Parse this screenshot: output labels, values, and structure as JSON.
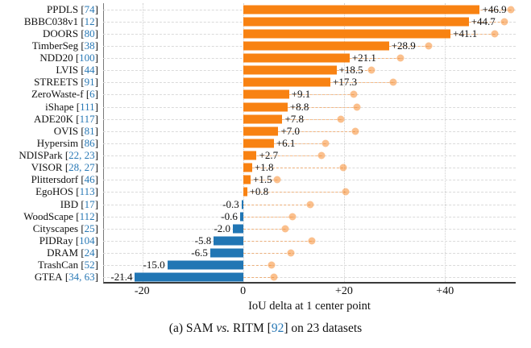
{
  "chart_data": {
    "type": "bar",
    "orientation": "horizontal",
    "xlabel": "IoU delta at 1 center point",
    "xlim": [
      -27.7,
      54.0
    ],
    "grid": {
      "vertical": "dotted at x ticks",
      "horizontal": "dashed per row"
    },
    "x_ticks": [
      {
        "value": -20,
        "label": "-20"
      },
      {
        "value": 0,
        "label": "0"
      },
      {
        "value": 20,
        "label": "+20"
      },
      {
        "value": 40,
        "label": "+40"
      }
    ],
    "colors": {
      "bar_positive": "#f88212",
      "bar_negative": "#2176b4",
      "dot": "rgba(247,141,47,0.55)",
      "connector": "rgba(247,141,47,0.55)",
      "citation": "#2878b5"
    },
    "series": [
      {
        "name": "bars",
        "description": "IoU delta at 1 center point (labeled values)"
      },
      {
        "name": "dots",
        "description": "unlabeled light-orange dots; values estimated from pixels"
      }
    ],
    "rows": [
      {
        "dataset": "PPDLS",
        "cite": "74",
        "delta": 46.9,
        "label": "+46.9",
        "dot": 53.1
      },
      {
        "dataset": "BBBC038v1",
        "cite": "12",
        "delta": 44.7,
        "label": "+44.7",
        "dot": 51.8
      },
      {
        "dataset": "DOORS",
        "cite": "80",
        "delta": 41.1,
        "label": "+41.1",
        "dot": 49.9
      },
      {
        "dataset": "TimberSeg",
        "cite": "38",
        "delta": 28.9,
        "label": "+28.9",
        "dot": 36.8
      },
      {
        "dataset": "NDD20",
        "cite": "100",
        "delta": 21.1,
        "label": "+21.1",
        "dot": 31.2
      },
      {
        "dataset": "LVIS",
        "cite": "44",
        "delta": 18.5,
        "label": "+18.5",
        "dot": 25.5
      },
      {
        "dataset": "STREETS",
        "cite": "91",
        "delta": 17.3,
        "label": "+17.3",
        "dot": 29.7
      },
      {
        "dataset": "ZeroWaste-f",
        "cite": "6",
        "delta": 9.1,
        "label": "+9.1",
        "dot": 22.0
      },
      {
        "dataset": "iShape",
        "cite": "111",
        "delta": 8.8,
        "label": "+8.8",
        "dot": 22.5
      },
      {
        "dataset": "ADE20K",
        "cite": "117",
        "delta": 7.8,
        "label": "+7.8",
        "dot": 19.3
      },
      {
        "dataset": "OVIS",
        "cite": "81",
        "delta": 7.0,
        "label": "+7.0",
        "dot": 22.2
      },
      {
        "dataset": "Hypersim",
        "cite": "86",
        "delta": 6.1,
        "label": "+6.1",
        "dot": 16.4
      },
      {
        "dataset": "NDISPark",
        "cite": "22, 23",
        "delta": 2.7,
        "label": "+2.7",
        "dot": 15.6
      },
      {
        "dataset": "VISOR",
        "cite": "28, 27",
        "delta": 1.8,
        "label": "+1.8",
        "dot": 19.9
      },
      {
        "dataset": "Plittersdorf",
        "cite": "46",
        "delta": 1.5,
        "label": "+1.5",
        "dot": 6.8
      },
      {
        "dataset": "EgoHOS",
        "cite": "113",
        "delta": 0.8,
        "label": "+0.8",
        "dot": 20.4
      },
      {
        "dataset": "IBD",
        "cite": "17",
        "delta": -0.3,
        "label": "-0.3",
        "dot": 13.3
      },
      {
        "dataset": "WoodScape",
        "cite": "112",
        "delta": -0.6,
        "label": "-0.6",
        "dot": 9.8
      },
      {
        "dataset": "Cityscapes",
        "cite": "25",
        "delta": -2.0,
        "label": "-2.0",
        "dot": 8.4
      },
      {
        "dataset": "PIDRay",
        "cite": "104",
        "delta": -5.8,
        "label": "-5.8",
        "dot": 13.7
      },
      {
        "dataset": "DRAM",
        "cite": "24",
        "delta": -6.5,
        "label": "-6.5",
        "dot": 9.5
      },
      {
        "dataset": "TrashCan",
        "cite": "52",
        "delta": -15.0,
        "label": "-15.0",
        "dot": 5.6
      },
      {
        "dataset": "GTEA",
        "cite": "34, 63",
        "delta": -21.4,
        "label": "-21.4",
        "dot": 6.2
      }
    ]
  },
  "caption": {
    "part1": "(a) SAM ",
    "vs": "vs.",
    "part2": " RITM [",
    "cite": "92",
    "part3": "] on 23 datasets"
  }
}
